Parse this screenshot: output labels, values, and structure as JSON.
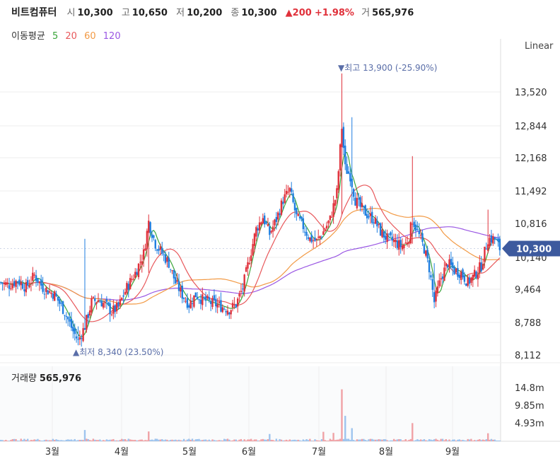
{
  "header": {
    "name": "비트컴퓨터",
    "open_label": "시",
    "open": "10,300",
    "high_label": "고",
    "high": "10,650",
    "low_label": "저",
    "low": "10,200",
    "close_label": "종",
    "close": "10,300",
    "change": "▲200",
    "change_pct": "+1.98%",
    "volume_label": "거",
    "volume": "565,976"
  },
  "ma_legend": {
    "title": "이동평균",
    "periods": [
      {
        "label": "5",
        "color": "#3aa53a"
      },
      {
        "label": "20",
        "color": "#e8585b"
      },
      {
        "label": "60",
        "color": "#f29a45"
      },
      {
        "label": "120",
        "color": "#9a57e3"
      }
    ]
  },
  "scale_mode": "Linear",
  "volume_panel": {
    "title": "거래량",
    "value": "565,976"
  },
  "chart_data": {
    "type": "candlestick",
    "colors": {
      "up": "#e0313b",
      "down": "#1e7ee0",
      "price_tag": "#3d5a9e",
      "grid": "#eeeeee"
    },
    "y_ticks": [
      "13,520",
      "12,844",
      "12,168",
      "11,492",
      "10,816",
      "10,140",
      "9,464",
      "8,788",
      "8,112"
    ],
    "y_tick_values": [
      13520,
      12844,
      12168,
      11492,
      10816,
      10140,
      9464,
      8788,
      8112
    ],
    "ylim": [
      7968,
      14350
    ],
    "x_ticks": [
      "3월",
      "4월",
      "5월",
      "6월",
      "7월",
      "8월",
      "9월"
    ],
    "current_price_label": "10,300",
    "current_price": 10300,
    "max_annotation": "▼최고 13,900 (-25.90%)",
    "min_annotation": "▲최저 8,340 (23.50%)",
    "volume_ticks": [
      "14.8m",
      "9.85m",
      "4.93m"
    ],
    "volume_tick_values": [
      14.8,
      9.85,
      4.93
    ],
    "volume_unit": "m",
    "anchors": [
      [
        0,
        9600
      ],
      [
        5,
        9550
      ],
      [
        10,
        9650
      ],
      [
        15,
        9500
      ],
      [
        20,
        9750
      ],
      [
        25,
        9500
      ],
      [
        32,
        9350
      ],
      [
        38,
        9000
      ],
      [
        43,
        8600
      ],
      [
        46,
        8400
      ],
      [
        50,
        8700
      ],
      [
        54,
        9200
      ],
      [
        58,
        9250
      ],
      [
        62,
        9150
      ],
      [
        66,
        9000
      ],
      [
        70,
        9100
      ],
      [
        75,
        9500
      ],
      [
        80,
        9800
      ],
      [
        85,
        10200
      ],
      [
        88,
        10850
      ],
      [
        92,
        10400
      ],
      [
        96,
        10200
      ],
      [
        100,
        10000
      ],
      [
        104,
        9600
      ],
      [
        108,
        9350
      ],
      [
        112,
        9150
      ],
      [
        116,
        9350
      ],
      [
        120,
        9250
      ],
      [
        124,
        9200
      ],
      [
        128,
        9150
      ],
      [
        132,
        9100
      ],
      [
        136,
        9050
      ],
      [
        140,
        9150
      ],
      [
        144,
        9500
      ],
      [
        148,
        10100
      ],
      [
        152,
        10700
      ],
      [
        156,
        10950
      ],
      [
        160,
        10600
      ],
      [
        164,
        10900
      ],
      [
        168,
        11300
      ],
      [
        172,
        11500
      ],
      [
        176,
        10950
      ],
      [
        180,
        10750
      ],
      [
        184,
        10500
      ],
      [
        188,
        10450
      ],
      [
        192,
        10650
      ],
      [
        196,
        10900
      ],
      [
        200,
        11450
      ],
      [
        203,
        12800
      ],
      [
        205,
        11950
      ],
      [
        208,
        11800
      ],
      [
        211,
        11300
      ],
      [
        214,
        11150
      ],
      [
        218,
        11000
      ],
      [
        222,
        10900
      ],
      [
        226,
        10650
      ],
      [
        230,
        10500
      ],
      [
        234,
        10450
      ],
      [
        238,
        10350
      ],
      [
        241,
        10400
      ],
      [
        243,
        10550
      ],
      [
        245,
        10900
      ],
      [
        248,
        10650
      ],
      [
        252,
        10300
      ],
      [
        255,
        9900
      ],
      [
        258,
        9200
      ],
      [
        262,
        9700
      ],
      [
        266,
        10000
      ],
      [
        270,
        9850
      ],
      [
        274,
        9800
      ],
      [
        278,
        9600
      ],
      [
        282,
        9750
      ],
      [
        286,
        9950
      ],
      [
        290,
        10500
      ],
      [
        294,
        10500
      ],
      [
        297,
        10300
      ]
    ],
    "spikes": [
      {
        "i": 203,
        "high": 13900,
        "low": 11000
      },
      {
        "i": 209,
        "high": 13000,
        "low": 11200
      },
      {
        "i": 50,
        "high": 10500,
        "low": 8700
      },
      {
        "i": 88,
        "high": 11000,
        "low": 9800
      },
      {
        "i": 245,
        "high": 12200,
        "low": 10400
      },
      {
        "i": 258,
        "high": 10000,
        "low": 9100
      },
      {
        "i": 46,
        "high": 8700,
        "low": 8340
      },
      {
        "i": 290,
        "high": 11100,
        "low": 10200
      }
    ],
    "volume_spikes": [
      {
        "i": 203,
        "v": 14.3
      },
      {
        "i": 205,
        "v": 7.0
      },
      {
        "i": 209,
        "v": 3.6
      },
      {
        "i": 50,
        "v": 3.1
      },
      {
        "i": 88,
        "v": 2.7
      },
      {
        "i": 245,
        "v": 5.0
      },
      {
        "i": 160,
        "v": 2.0
      },
      {
        "i": 192,
        "v": 2.6
      },
      {
        "i": 198,
        "v": 2.3
      },
      {
        "i": 290,
        "v": 2.2
      }
    ]
  }
}
